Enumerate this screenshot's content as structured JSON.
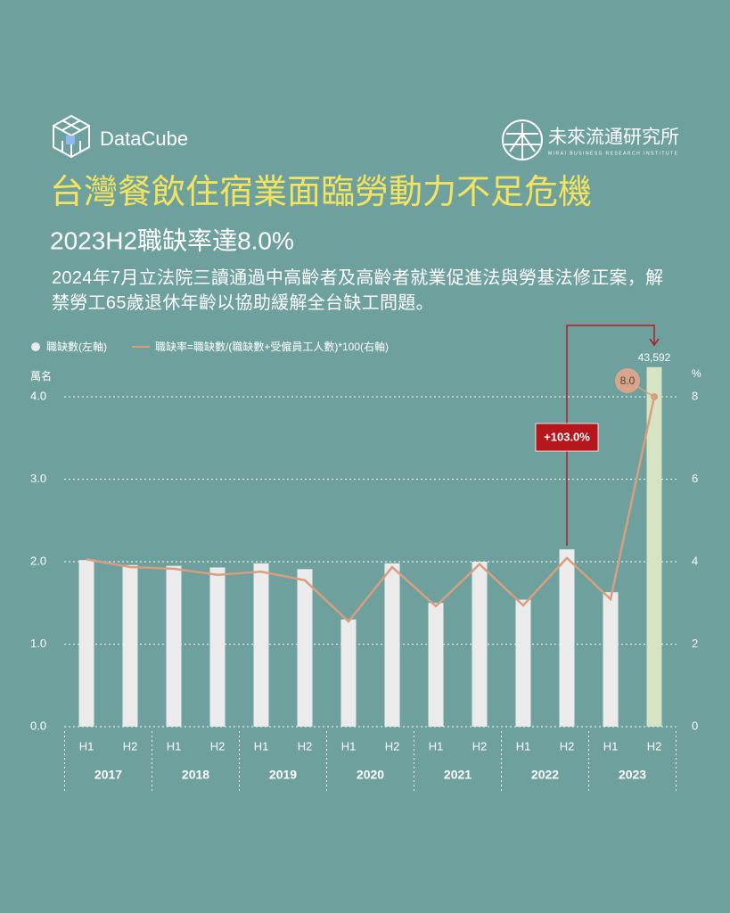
{
  "header": {
    "brand_left": "DataCube",
    "brand_right": "未來流通研究所",
    "brand_right_sub": "MIRAI BUSINESS RESEARCH INSTITUTE"
  },
  "chart_data": {
    "type": "bar_line",
    "title": "台灣餐飲住宿業面臨勞動力不足危機",
    "subtitle": "2023H2職缺率達8.0%",
    "description": "2024年7月立法院三讀通過中高齡者及高齡者就業促進法與勞基法修正案，解禁勞工65歲退休年齡以協助緩解全台缺工問題。",
    "y_label": "萬名",
    "y2_label": "%",
    "categories": [
      "H1",
      "H2",
      "H1",
      "H2",
      "H1",
      "H2",
      "H1",
      "H2",
      "H1",
      "H2",
      "H1",
      "H2",
      "H1",
      "H2"
    ],
    "groups": [
      "2017",
      "2018",
      "2019",
      "2020",
      "2021",
      "2022",
      "2023"
    ],
    "series": [
      {
        "name": "職缺數(左軸)",
        "color": "#ebebeb",
        "highlight_color": "#d6e4c4",
        "values": [
          2.02,
          1.96,
          1.95,
          1.93,
          1.98,
          1.91,
          1.3,
          1.98,
          1.5,
          2.0,
          1.54,
          2.15,
          1.63,
          4.3592
        ],
        "value_labels": [
          null,
          null,
          null,
          null,
          null,
          null,
          null,
          null,
          null,
          null,
          null,
          null,
          null,
          "43,592"
        ]
      },
      {
        "name": "職缺率=職缺數/(職缺數+受僱員工人數)*100(右軸)",
        "color": "#d89e7f",
        "axis": "y2",
        "values": [
          4.06,
          3.87,
          3.83,
          3.68,
          3.76,
          3.55,
          2.55,
          3.87,
          2.92,
          3.94,
          2.94,
          4.09,
          3.09,
          8.0
        ],
        "value_labels": [
          null,
          null,
          null,
          null,
          null,
          null,
          null,
          null,
          null,
          null,
          null,
          null,
          null,
          "8.0"
        ]
      }
    ],
    "annotation": "+103.0%",
    "ylim": [
      0,
      4
    ],
    "yticks": [
      {
        "value": 0,
        "label": "0.0"
      },
      {
        "value": 1,
        "label": "1.0"
      },
      {
        "value": 2,
        "label": "2.0"
      },
      {
        "value": 3,
        "label": "3.0"
      },
      {
        "value": 4,
        "label": "4.0"
      }
    ],
    "y2lim": [
      0,
      8
    ],
    "y2ticks": [
      0,
      2,
      4,
      6,
      8
    ],
    "grid": true
  }
}
